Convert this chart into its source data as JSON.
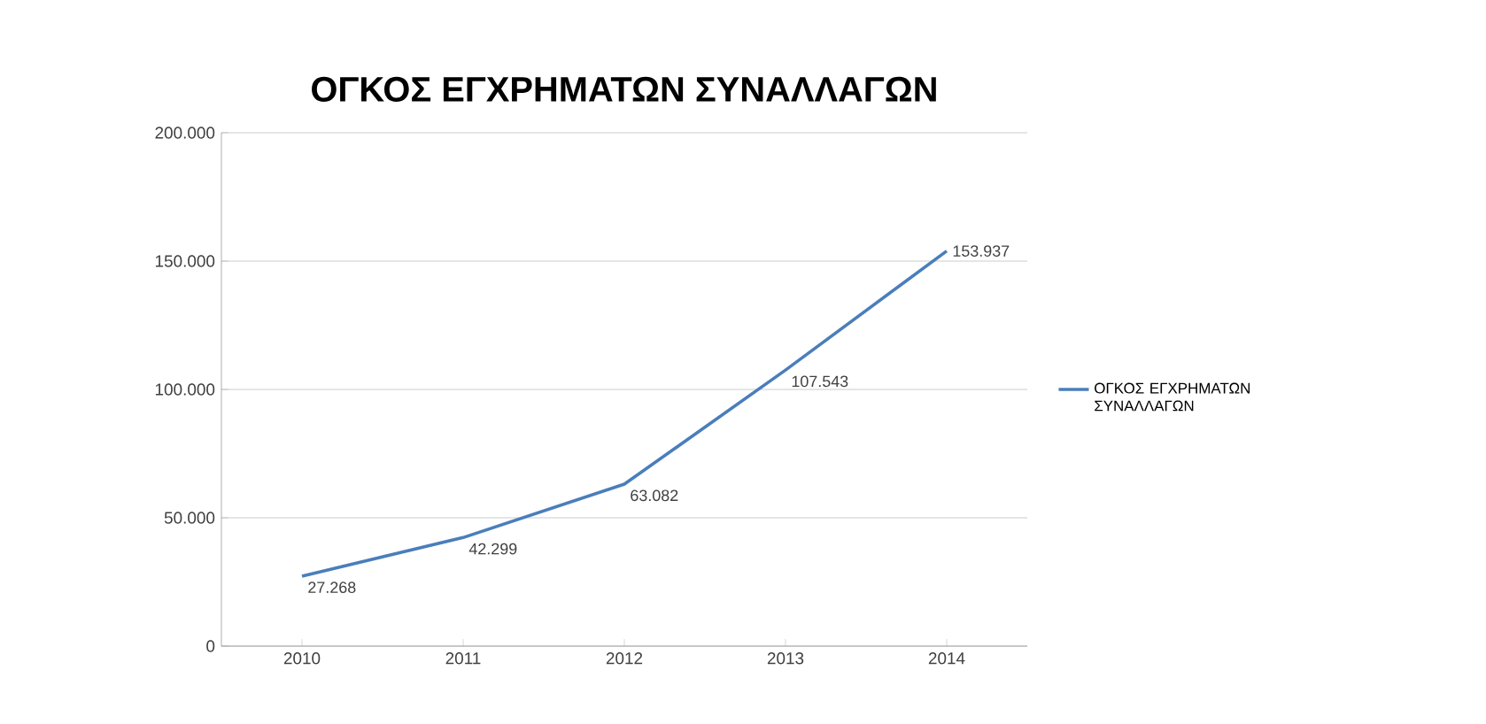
{
  "chart_data": {
    "type": "line",
    "title": "ΟΓΚΟΣ ΕΓΧΡΗΜΑΤΩΝ ΣΥΝΑΛΛΑΓΩΝ",
    "categories": [
      "2010",
      "2011",
      "2012",
      "2013",
      "2014"
    ],
    "series": [
      {
        "name": "ΟΓΚΟΣ ΕΓΧΡΗΜΑΤΩΝ ΣΥΝΑΛΛΑΓΩΝ",
        "color": "#4a7ebb",
        "values": [
          27268,
          42299,
          63082,
          107543,
          153937
        ],
        "value_labels": [
          "27.268",
          "42.299",
          "63.082",
          "107.543",
          "153.937"
        ]
      }
    ],
    "ylim": [
      0,
      200000
    ],
    "yticks": [
      {
        "value": 0,
        "label": "0"
      },
      {
        "value": 50000,
        "label": "50.000"
      },
      {
        "value": 100000,
        "label": "100.000"
      },
      {
        "value": 150000,
        "label": "150.000"
      },
      {
        "value": 200000,
        "label": "200.000"
      }
    ],
    "grid": "y",
    "legend": "right",
    "marker": "none",
    "line_style": "solid"
  }
}
